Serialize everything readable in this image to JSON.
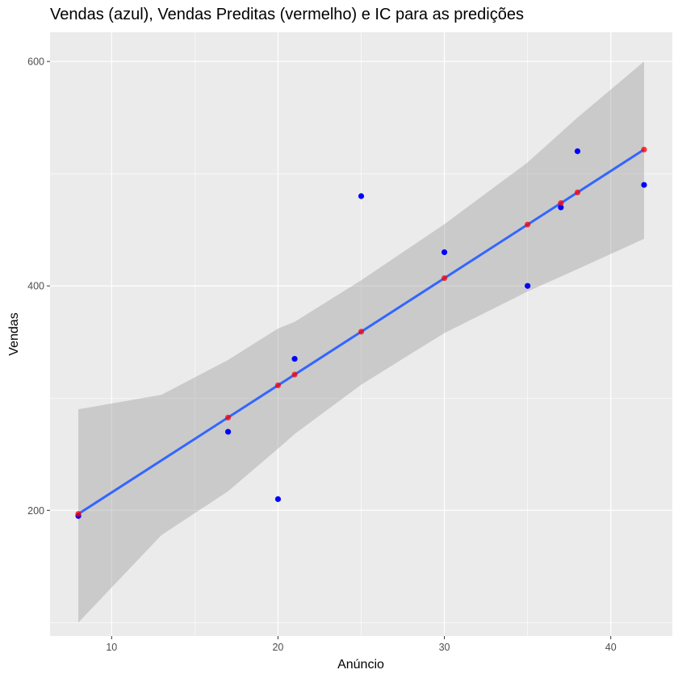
{
  "chart_data": {
    "type": "scatter",
    "title": "Vendas (azul), Vendas Preditas (vermelho) e IC para as predições",
    "xlabel": "Anúncio",
    "ylabel": "Vendas",
    "xlim": [
      6.3,
      43.7
    ],
    "ylim": [
      88,
      626
    ],
    "x_ticks": [
      10,
      20,
      30,
      40
    ],
    "y_ticks": [
      200,
      400,
      600
    ],
    "grid": true,
    "legend": "none",
    "regression": {
      "intercept": 120.4,
      "slope": 9.55
    },
    "confidence_band": {
      "x": [
        8,
        13,
        17,
        20,
        21,
        25,
        30,
        35,
        38,
        42
      ],
      "lower": [
        100,
        178,
        217,
        255,
        268,
        312,
        358,
        395,
        415,
        442
      ],
      "upper": [
        290,
        303,
        334,
        362,
        368,
        405,
        455,
        510,
        550,
        600
      ]
    },
    "series": [
      {
        "role": "observed",
        "color": "#0000ff",
        "x": [
          8,
          17,
          20,
          21,
          25,
          30,
          35,
          37,
          38,
          42
        ],
        "y": [
          195,
          270,
          210,
          335,
          480,
          430,
          400,
          470,
          520,
          490
        ]
      },
      {
        "role": "predicted",
        "color": "#ff0000",
        "x": [
          8,
          17,
          20,
          21,
          25,
          30,
          35,
          37,
          38,
          42
        ],
        "y": [
          196.8,
          282.7,
          311.4,
          321.0,
          359.2,
          406.9,
          454.7,
          473.8,
          483.3,
          521.5
        ]
      }
    ],
    "colors": {
      "panel": "#ebebeb",
      "grid": "#ffffff",
      "band": "#999999",
      "line": "#3366ff"
    }
  }
}
